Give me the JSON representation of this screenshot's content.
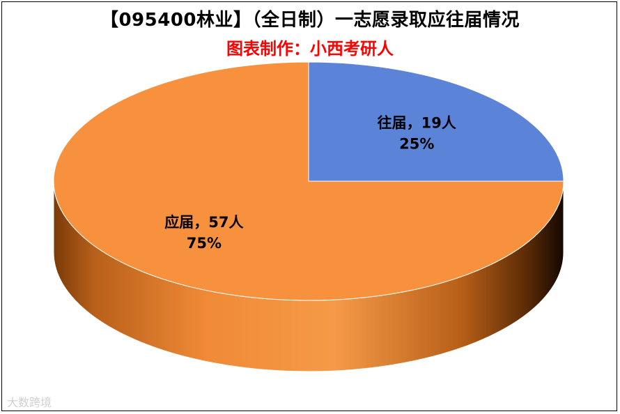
{
  "chart_data": {
    "type": "pie",
    "title": "【095400林业】（全日制）一志愿录取应往届情况",
    "subtitle": "图表制作：小西考研人",
    "slices": [
      {
        "name": "往届",
        "value": 19,
        "unit": "人",
        "percent": "25%",
        "color": "#5B84D9",
        "label": "往届，19人"
      },
      {
        "name": "应届",
        "value": 57,
        "unit": "人",
        "percent": "75%",
        "color": "#F7913D",
        "label": "应届，57人"
      }
    ],
    "legend": "none",
    "style": "3d-cylinder"
  },
  "watermark": {
    "text": "大数跨境"
  }
}
